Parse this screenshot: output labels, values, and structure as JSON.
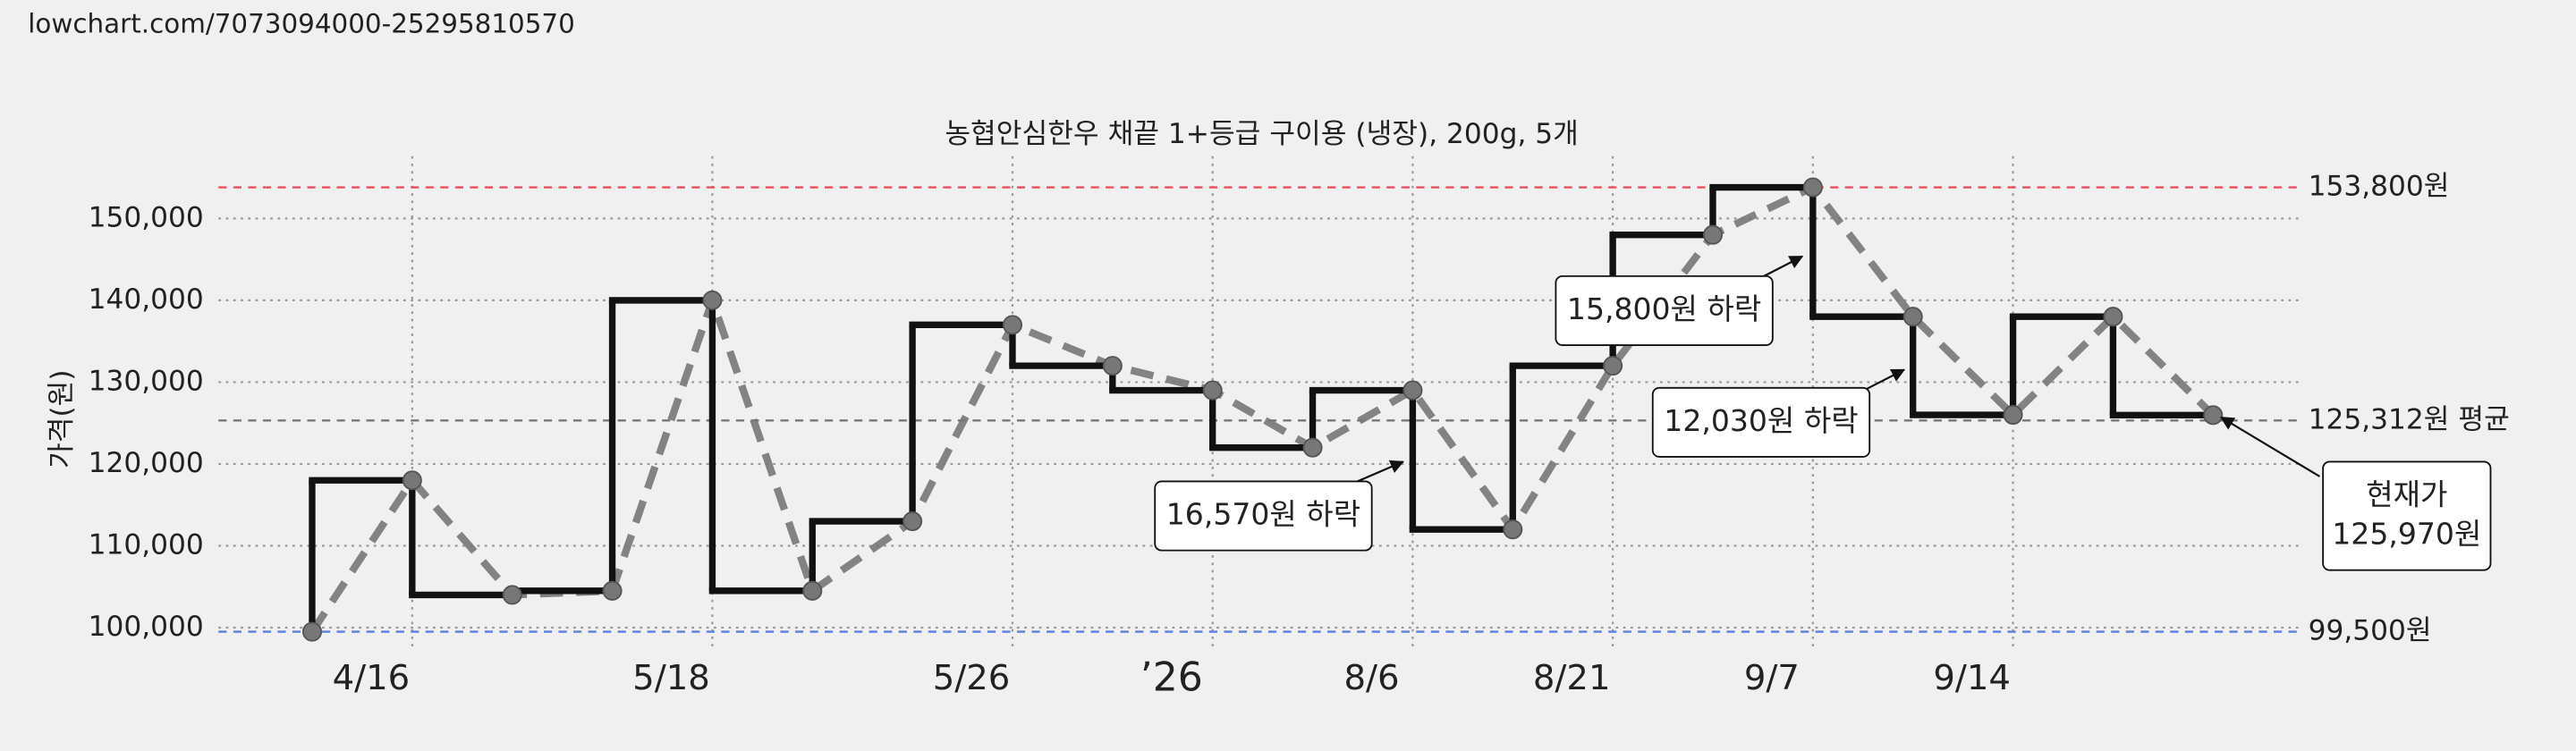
{
  "url": "lowchart.com/7073094000-25295810570",
  "chart_data": {
    "type": "step",
    "title": "농협안심한우 채끝 1+등급 구이용 (냉장), 200g, 5개",
    "y_label": "가격(원)",
    "categories": [
      null,
      "4/16",
      null,
      null,
      "5/18",
      null,
      null,
      "5/26",
      null,
      "’26",
      null,
      "8/6",
      null,
      "8/21",
      null,
      "9/7",
      null,
      "9/14",
      null,
      null
    ],
    "series": [
      {
        "color": "#111111",
        "marker_color": "#777777",
        "values": [
          99500,
          118000,
          104000,
          104500,
          140000,
          104500,
          113000,
          137000,
          132000,
          129000,
          122000,
          129000,
          112000,
          132000,
          148000,
          153800,
          138000,
          126000,
          138000,
          125970
        ]
      }
    ],
    "ylim": [
      97400,
      157600
    ],
    "yticks": [
      {
        "value": 100000,
        "label": "100,000"
      },
      {
        "value": 110000,
        "label": "110,000"
      },
      {
        "value": 120000,
        "label": "120,000"
      },
      {
        "value": 130000,
        "label": "130,000"
      },
      {
        "value": 140000,
        "label": "140,000"
      },
      {
        "value": 150000,
        "label": "150,000"
      }
    ],
    "grid": true,
    "reference_lines": [
      {
        "value": 153800,
        "label": "153,800원",
        "color": "#e8505f"
      },
      {
        "value": 125312,
        "label": "125,312원 평균",
        "color": "#777777"
      },
      {
        "value": 99500,
        "label": "99,500원",
        "color": "#5b7fe0"
      }
    ],
    "annotations": [
      {
        "lines": [
          "15,800원 하락"
        ]
      },
      {
        "lines": [
          "12,030원 하락"
        ]
      },
      {
        "lines": [
          "16,570원 하락"
        ]
      },
      {
        "lines": [
          "현재가",
          "125,970원"
        ]
      }
    ]
  }
}
